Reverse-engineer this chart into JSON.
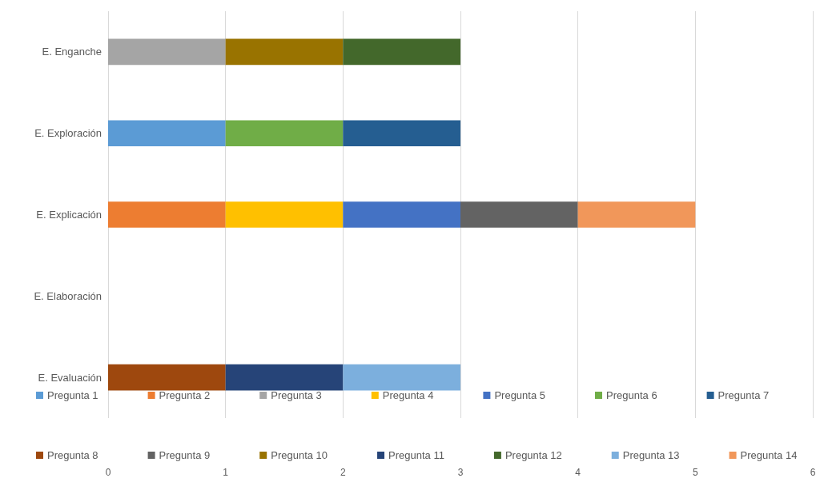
{
  "chart_data": {
    "type": "bar",
    "orientation": "horizontal",
    "stacked": true,
    "categories": [
      "E. Enganche",
      "E. Exploración",
      "E. Explicación",
      "E. Elaboración",
      "E. Evaluación"
    ],
    "series": [
      {
        "name": "Pregunta 1",
        "color": "#5b9bd5",
        "values": [
          null,
          1,
          null,
          null,
          null
        ]
      },
      {
        "name": "Pregunta 2",
        "color": "#ed7d31",
        "values": [
          null,
          null,
          1,
          null,
          null
        ]
      },
      {
        "name": "Pregunta 3",
        "color": "#a5a5a5",
        "values": [
          1,
          null,
          null,
          null,
          null
        ]
      },
      {
        "name": "Pregunta 4",
        "color": "#ffc000",
        "values": [
          null,
          null,
          1,
          null,
          null
        ]
      },
      {
        "name": "Pregunta 5",
        "color": "#4472c4",
        "values": [
          null,
          null,
          1,
          null,
          null
        ]
      },
      {
        "name": "Pregunta 6",
        "color": "#70ad47",
        "values": [
          null,
          1,
          null,
          null,
          null
        ]
      },
      {
        "name": "Pregunta 7",
        "color": "#255e91",
        "values": [
          null,
          1,
          null,
          null,
          null
        ]
      },
      {
        "name": "Pregunta 8",
        "color": "#9e480e",
        "values": [
          null,
          null,
          null,
          null,
          1
        ]
      },
      {
        "name": "Pregunta 9",
        "color": "#636363",
        "values": [
          null,
          null,
          1,
          null,
          null
        ]
      },
      {
        "name": "Pregunta 10",
        "color": "#997300",
        "values": [
          1,
          null,
          null,
          null,
          null
        ]
      },
      {
        "name": "Pregunta 11",
        "color": "#264478",
        "values": [
          null,
          null,
          null,
          null,
          1
        ]
      },
      {
        "name": "Pregunta 12",
        "color": "#43682b",
        "values": [
          1,
          null,
          null,
          null,
          null
        ]
      },
      {
        "name": "Pregunta 13",
        "color": "#7cafdd",
        "values": [
          null,
          null,
          null,
          null,
          1
        ]
      },
      {
        "name": "Pregunta 14",
        "color": "#f1975a",
        "values": [
          null,
          null,
          1,
          null,
          null
        ]
      }
    ],
    "xlim": [
      0,
      6
    ],
    "xticks": [
      0,
      1,
      2,
      3,
      4,
      5,
      6
    ],
    "grid": "x",
    "legend": "bottom"
  }
}
